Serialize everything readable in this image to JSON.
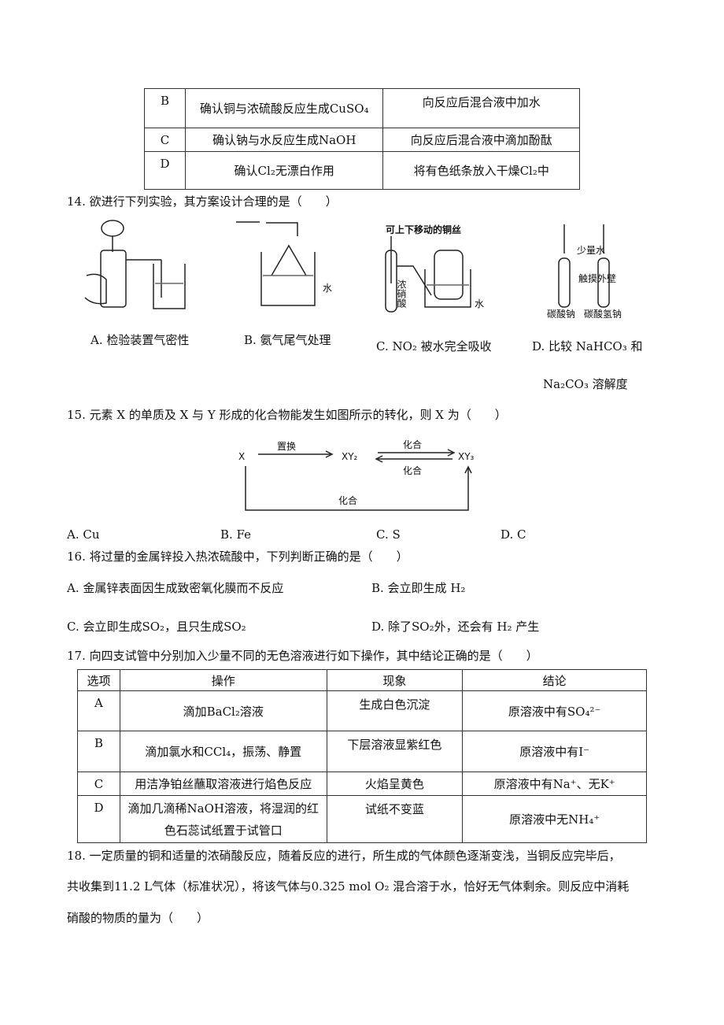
{
  "table_top": {
    "rows": [
      [
        "B",
        "确认铜与浓硫酸反应生成CuSO₄",
        "向反应后混合液中加水"
      ],
      [
        "C",
        "确认钠与水反应生成NaOH",
        "向反应后混合液中滴加酚酞"
      ],
      [
        "D",
        "确认Cl₂无漂白作用",
        "将有色纸条放入干燥Cl₂中"
      ]
    ]
  },
  "q14": {
    "stem": "14. 欲进行下列实验，其方案设计合理的是（　　）",
    "figure_labels": {
      "b_water": "水",
      "c_wire": "可上下移动的铜丝",
      "c_acid": "浓硝酸",
      "c_water": "水",
      "d_water": "少量水",
      "d_touch": "触摸外壁",
      "d_left": "碳酸钠",
      "d_right": "碳酸氢钠"
    },
    "options": [
      "A. 检验装置气密性",
      "B. 氨气尾气处理",
      "C. NO₂ 被水完全吸收"
    ],
    "option_d_lines": [
      "D. 比较 NaHCO₃ 和",
      "Na₂CO₃ 溶解度"
    ]
  },
  "q15": {
    "stem": "15. 元素 X 的单质及 X 与 Y 形成的化合物能发生如图所示的转化，则 X 为（　　）",
    "diagram": {
      "nodes": [
        "X",
        "XY₂",
        "XY₃"
      ],
      "edges": [
        "置换",
        "化合",
        "化合",
        "化合"
      ]
    },
    "options": [
      "A. Cu",
      "B. Fe",
      "C. S",
      "D. C"
    ]
  },
  "q16": {
    "stem": "16. 将过量的金属锌投入热浓硫酸中，下列判断正确的是（　　）",
    "options": [
      "A. 金属锌表面因生成致密氧化膜而不反应",
      "B. 会立即生成 H₂",
      "C. 会立即生成SO₂，且只生成SO₂",
      "D. 除了SO₂外，还会有 H₂ 产生"
    ]
  },
  "q17": {
    "stem": "17. 向四支试管中分别加入少量不同的无色溶液进行如下操作，其中结论正确的是（　　）",
    "header": [
      "选项",
      "操作",
      "现象",
      "结论"
    ],
    "rows": [
      [
        "A",
        "滴加BaCl₂溶液",
        "生成白色沉淀",
        "原溶液中有SO₄²⁻"
      ],
      [
        "B",
        "滴加氯水和CCl₄，振荡、静置",
        "下层溶液显紫红色",
        "原溶液中有I⁻"
      ],
      [
        "C",
        "用洁净铂丝蘸取溶液进行焰色反应",
        "火焰呈黄色",
        "原溶液中有Na⁺、无K⁺"
      ],
      [
        "D",
        "滴加几滴稀NaOH溶液，将湿润的红色石蕊试纸置于试管口",
        "试纸不变蓝",
        "原溶液中无NH₄⁺"
      ]
    ]
  },
  "q18": {
    "lines": [
      "18. 一定质量的铜和适量的浓硝酸反应，随着反应的进行，所生成的气体颜色逐渐变浅，当铜反应完毕后，",
      "共收集到11.2 L气体（标准状况），将该气体与0.325 mol  O₂ 混合溶于水，恰好无气体剩余。则反应中消耗",
      "硝酸的物质的量为（　　）"
    ]
  }
}
